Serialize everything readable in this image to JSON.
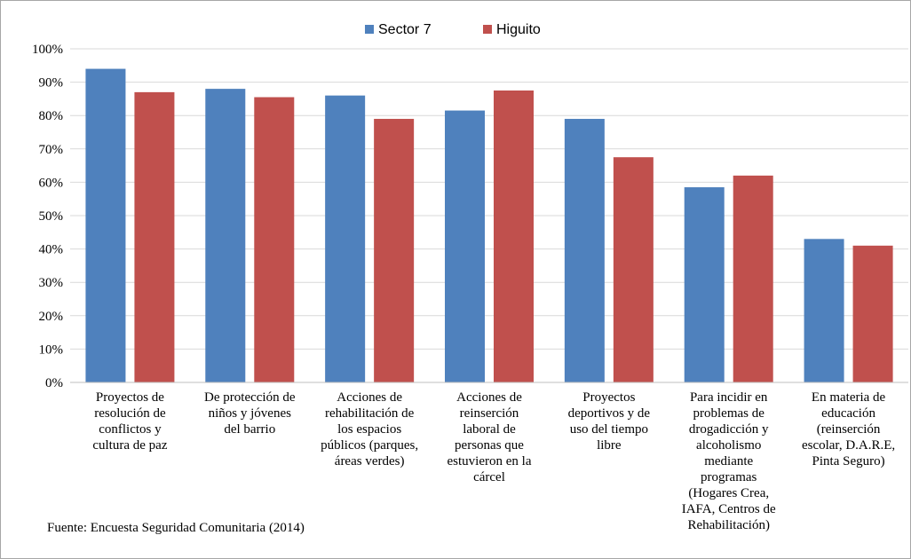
{
  "chart_data": {
    "type": "bar",
    "categories": [
      "Proyectos de resolución de conflictos y cultura de paz",
      "De protección de niños y jóvenes del barrio",
      "Acciones de rehabilitación de los espacios públicos (parques, áreas verdes)",
      "Acciones de reinserción laboral de personas que estuvieron en la cárcel",
      "Proyectos deportivos y de uso del tiempo libre",
      "Para incidir en problemas de drogadicción y alcoholismo mediante programas (Hogares Crea, IAFA, Centros de Rehabilitación)",
      "En materia de educación (reinserción escolar, D.A.R.E, Pinta Seguro)"
    ],
    "category_lines": [
      [
        "Proyectos de",
        "resolución de",
        "conflictos y",
        "cultura de paz"
      ],
      [
        "De protección de",
        "niños y jóvenes",
        "del barrio"
      ],
      [
        "Acciones de",
        "rehabilitación de",
        "los espacios",
        "públicos (parques,",
        "áreas verdes)"
      ],
      [
        "Acciones de",
        "reinserción",
        "laboral de",
        "personas que",
        "estuvieron en la",
        "cárcel"
      ],
      [
        "Proyectos",
        "deportivos y de",
        "uso del tiempo",
        "libre"
      ],
      [
        "Para incidir en",
        "problemas de",
        "drogadicción y",
        "alcoholismo",
        "mediante",
        "programas",
        "(Hogares Crea,",
        "IAFA, Centros de",
        "Rehabilitación)"
      ],
      [
        "En materia de",
        "educación",
        "(reinserción",
        "escolar, D.A.R.E,",
        "Pinta Seguro)"
      ]
    ],
    "series": [
      {
        "name": "Sector 7",
        "color": "#4f81bd",
        "values": [
          94,
          88,
          86,
          81.5,
          79,
          58.5,
          43
        ]
      },
      {
        "name": "Higuito",
        "color": "#c0504d",
        "values": [
          87,
          85.5,
          79,
          87.5,
          67.5,
          62,
          41
        ]
      }
    ],
    "y_ticks": [
      "0%",
      "10%",
      "20%",
      "30%",
      "40%",
      "50%",
      "60%",
      "70%",
      "80%",
      "90%",
      "100%"
    ],
    "ylim": [
      0,
      100
    ],
    "grid": true,
    "legend_position": "top-center"
  },
  "source_note": "Fuente: Encuesta Seguridad Comunitaria (2014)"
}
